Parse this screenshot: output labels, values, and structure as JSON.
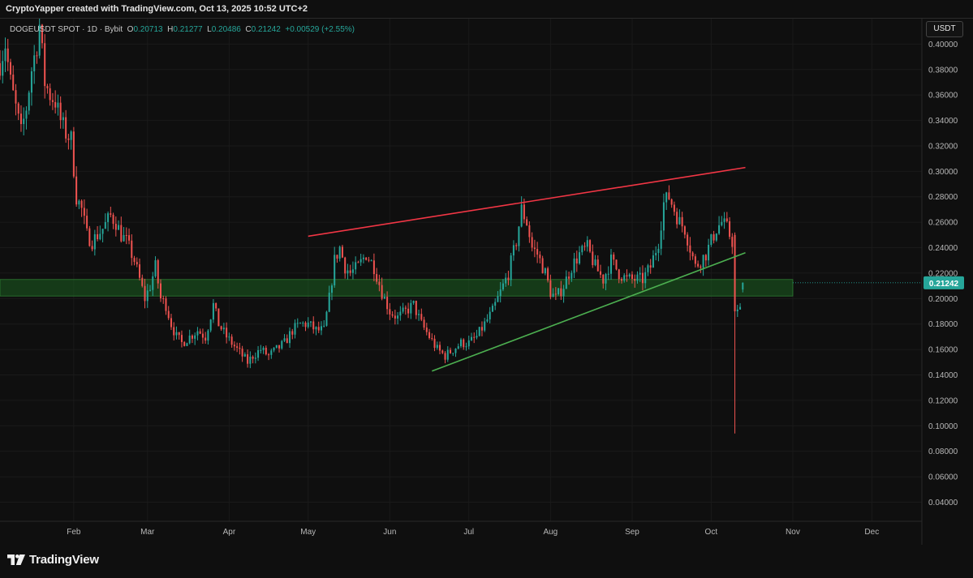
{
  "header": {
    "credit": "CryptoYapper created with TradingView.com, Oct 13, 2025 10:52 UTC+2"
  },
  "legend": {
    "symbol": "DOGEUSDT SPOT · 1D · Bybit",
    "open_label": "O",
    "open": "0.20713",
    "high_label": "H",
    "high": "0.21277",
    "low_label": "L",
    "low": "0.20486",
    "close_label": "C",
    "close": "0.21242",
    "change": "+0.00529 (+2.55%)"
  },
  "currency": "USDT",
  "footer": {
    "brand": "TradingView"
  },
  "colors": {
    "up": "#26a69a",
    "down": "#ef5350",
    "resistance": "#f23645",
    "support": "#4caf50",
    "zone": "#1b5e20",
    "background": "#0f0f0f"
  },
  "chart_data": {
    "type": "candlestick",
    "symbol": "DOGEUSDT",
    "interval": "1D",
    "exchange": "Bybit",
    "ylim": [
      0.025,
      0.42
    ],
    "xlim": [
      "2025-01-04",
      "2025-12-20"
    ],
    "y_ticks": [
      "0.40000",
      "0.38000",
      "0.36000",
      "0.34000",
      "0.32000",
      "0.30000",
      "0.28000",
      "0.26000",
      "0.24000",
      "0.22000",
      "0.20000",
      "0.18000",
      "0.16000",
      "0.14000",
      "0.12000",
      "0.10000",
      "0.08000",
      "0.06000",
      "0.04000"
    ],
    "x_ticks": [
      {
        "label": "Feb",
        "date": "2025-02-01"
      },
      {
        "label": "Mar",
        "date": "2025-03-01"
      },
      {
        "label": "Apr",
        "date": "2025-04-01"
      },
      {
        "label": "May",
        "date": "2025-05-01"
      },
      {
        "label": "Jun",
        "date": "2025-06-01"
      },
      {
        "label": "Jul",
        "date": "2025-07-01"
      },
      {
        "label": "Aug",
        "date": "2025-08-01"
      },
      {
        "label": "Sep",
        "date": "2025-09-01"
      },
      {
        "label": "Oct",
        "date": "2025-10-01"
      },
      {
        "label": "Nov",
        "date": "2025-11-01"
      },
      {
        "label": "Dec",
        "date": "2025-12-01"
      }
    ],
    "last_price": {
      "value": 0.21242,
      "label": "0.21242"
    },
    "support_zone": {
      "from": "2025-01-04",
      "to": "2025-11-01",
      "low": 0.202,
      "high": 0.215
    },
    "trendlines": [
      {
        "name": "resistance",
        "color": "#f23645",
        "points": [
          [
            "2025-05-01",
            0.249
          ],
          [
            "2025-10-14",
            0.303
          ]
        ]
      },
      {
        "name": "support",
        "color": "#4caf50",
        "points": [
          [
            "2025-06-17",
            0.143
          ],
          [
            "2025-10-14",
            0.236
          ]
        ]
      }
    ],
    "price_path": [
      [
        "2025-01-04",
        0.385
      ],
      [
        "2025-01-06",
        0.4
      ],
      [
        "2025-01-08",
        0.37
      ],
      [
        "2025-01-10",
        0.35
      ],
      [
        "2025-01-12",
        0.33
      ],
      [
        "2025-01-14",
        0.35
      ],
      [
        "2025-01-16",
        0.38
      ],
      [
        "2025-01-18",
        0.4
      ],
      [
        "2025-01-19",
        0.415
      ],
      [
        "2025-01-21",
        0.37
      ],
      [
        "2025-01-23",
        0.36
      ],
      [
        "2025-01-25",
        0.355
      ],
      [
        "2025-01-27",
        0.34
      ],
      [
        "2025-01-29",
        0.33
      ],
      [
        "2025-01-31",
        0.325
      ],
      [
        "2025-02-02",
        0.28
      ],
      [
        "2025-02-04",
        0.27
      ],
      [
        "2025-02-06",
        0.25
      ],
      [
        "2025-02-08",
        0.245
      ],
      [
        "2025-02-10",
        0.25
      ],
      [
        "2025-02-12",
        0.255
      ],
      [
        "2025-02-15",
        0.265
      ],
      [
        "2025-02-17",
        0.26
      ],
      [
        "2025-02-19",
        0.25
      ],
      [
        "2025-02-21",
        0.245
      ],
      [
        "2025-02-24",
        0.23
      ],
      [
        "2025-02-26",
        0.215
      ],
      [
        "2025-02-28",
        0.2
      ],
      [
        "2025-03-02",
        0.21
      ],
      [
        "2025-03-04",
        0.225
      ],
      [
        "2025-03-06",
        0.2
      ],
      [
        "2025-03-08",
        0.195
      ],
      [
        "2025-03-10",
        0.18
      ],
      [
        "2025-03-12",
        0.17
      ],
      [
        "2025-03-14",
        0.165
      ],
      [
        "2025-03-17",
        0.17
      ],
      [
        "2025-03-20",
        0.175
      ],
      [
        "2025-03-23",
        0.17
      ],
      [
        "2025-03-26",
        0.195
      ],
      [
        "2025-03-28",
        0.18
      ],
      [
        "2025-03-31",
        0.17
      ],
      [
        "2025-04-02",
        0.165
      ],
      [
        "2025-04-04",
        0.16
      ],
      [
        "2025-04-06",
        0.155
      ],
      [
        "2025-04-08",
        0.15
      ],
      [
        "2025-04-10",
        0.155
      ],
      [
        "2025-04-13",
        0.16
      ],
      [
        "2025-04-16",
        0.155
      ],
      [
        "2025-04-19",
        0.16
      ],
      [
        "2025-04-22",
        0.165
      ],
      [
        "2025-04-25",
        0.175
      ],
      [
        "2025-04-28",
        0.18
      ],
      [
        "2025-05-01",
        0.18
      ],
      [
        "2025-05-04",
        0.175
      ],
      [
        "2025-05-07",
        0.175
      ],
      [
        "2025-05-09",
        0.2
      ],
      [
        "2025-05-11",
        0.23
      ],
      [
        "2025-05-13",
        0.24
      ],
      [
        "2025-05-15",
        0.225
      ],
      [
        "2025-05-17",
        0.22
      ],
      [
        "2025-05-20",
        0.225
      ],
      [
        "2025-05-23",
        0.235
      ],
      [
        "2025-05-26",
        0.225
      ],
      [
        "2025-05-29",
        0.205
      ],
      [
        "2025-06-01",
        0.19
      ],
      [
        "2025-06-04",
        0.185
      ],
      [
        "2025-06-07",
        0.19
      ],
      [
        "2025-06-10",
        0.195
      ],
      [
        "2025-06-13",
        0.18
      ],
      [
        "2025-06-16",
        0.17
      ],
      [
        "2025-06-19",
        0.16
      ],
      [
        "2025-06-22",
        0.155
      ],
      [
        "2025-06-25",
        0.16
      ],
      [
        "2025-06-28",
        0.165
      ],
      [
        "2025-07-01",
        0.165
      ],
      [
        "2025-07-04",
        0.17
      ],
      [
        "2025-07-07",
        0.18
      ],
      [
        "2025-07-10",
        0.19
      ],
      [
        "2025-07-13",
        0.205
      ],
      [
        "2025-07-16",
        0.22
      ],
      [
        "2025-07-19",
        0.245
      ],
      [
        "2025-07-21",
        0.27
      ],
      [
        "2025-07-23",
        0.26
      ],
      [
        "2025-07-25",
        0.24
      ],
      [
        "2025-07-27",
        0.235
      ],
      [
        "2025-07-30",
        0.22
      ],
      [
        "2025-08-01",
        0.205
      ],
      [
        "2025-08-03",
        0.2
      ],
      [
        "2025-08-06",
        0.21
      ],
      [
        "2025-08-09",
        0.225
      ],
      [
        "2025-08-12",
        0.235
      ],
      [
        "2025-08-15",
        0.24
      ],
      [
        "2025-08-18",
        0.225
      ],
      [
        "2025-08-21",
        0.215
      ],
      [
        "2025-08-24",
        0.23
      ],
      [
        "2025-08-27",
        0.22
      ],
      [
        "2025-08-30",
        0.215
      ],
      [
        "2025-09-02",
        0.215
      ],
      [
        "2025-09-05",
        0.215
      ],
      [
        "2025-09-08",
        0.225
      ],
      [
        "2025-09-11",
        0.245
      ],
      [
        "2025-09-13",
        0.275
      ],
      [
        "2025-09-15",
        0.28
      ],
      [
        "2025-09-17",
        0.27
      ],
      [
        "2025-09-19",
        0.26
      ],
      [
        "2025-09-21",
        0.255
      ],
      [
        "2025-09-23",
        0.24
      ],
      [
        "2025-09-25",
        0.225
      ],
      [
        "2025-09-27",
        0.23
      ],
      [
        "2025-09-29",
        0.235
      ],
      [
        "2025-10-01",
        0.245
      ],
      [
        "2025-10-03",
        0.255
      ],
      [
        "2025-10-05",
        0.26
      ],
      [
        "2025-10-07",
        0.255
      ],
      [
        "2025-10-09",
        0.245
      ],
      [
        "2025-10-10",
        0.25
      ],
      [
        "2025-10-11",
        0.19
      ],
      [
        "2025-10-12",
        0.19
      ],
      [
        "2025-10-13",
        0.2124
      ]
    ],
    "notable_candles": [
      {
        "date": "2025-10-10",
        "open": 0.25,
        "high": 0.252,
        "low": 0.094,
        "close": 0.19
      }
    ]
  }
}
